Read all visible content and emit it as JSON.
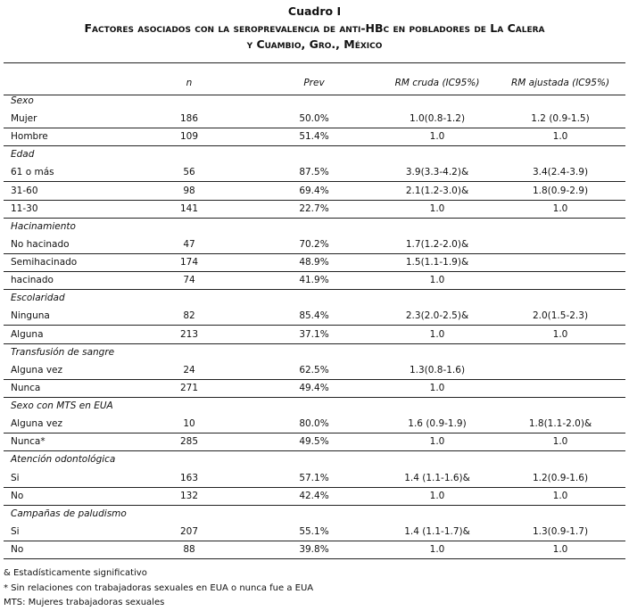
{
  "caption": "Cuadro I",
  "title_line1": "Factores asociados con la seroprevalencia de anti-HBc en pobladores de La Calera",
  "title_line2": "y Cuambio, Gro., México",
  "table": {
    "columns": [
      "n",
      "Prev",
      "RM cruda (IC95%)",
      "RM ajustada (IC95%)"
    ],
    "groups": [
      {
        "label": "Sexo",
        "rows": [
          [
            "Mujer",
            "186",
            "50.0%",
            "1.0(0.8-1.2)",
            "1.2 (0.9-1.5)"
          ],
          [
            "Hombre",
            "109",
            "51.4%",
            "1.0",
            "1.0"
          ]
        ]
      },
      {
        "label": "Edad",
        "rows": [
          [
            "61 o más",
            "56",
            "87.5%",
            "3.9(3.3-4.2)&",
            "3.4(2.4-3.9)"
          ],
          [
            "31-60",
            "98",
            "69.4%",
            "2.1(1.2-3.0)&",
            "1.8(0.9-2.9)"
          ],
          [
            "11-30",
            "141",
            "22.7%",
            "1.0",
            "1.0"
          ]
        ]
      },
      {
        "label": "Hacinamiento",
        "rows": [
          [
            "No hacinado",
            "47",
            "70.2%",
            "1.7(1.2-2.0)&",
            null
          ],
          [
            "Semihacinado",
            "174",
            "48.9%",
            "1.5(1.1-1.9)&",
            null
          ],
          [
            "hacinado",
            "74",
            "41.9%",
            "1.0",
            null
          ]
        ]
      },
      {
        "label": "Escolaridad",
        "rows": [
          [
            "Ninguna",
            "82",
            "85.4%",
            "2.3(2.0-2.5)&",
            "2.0(1.5-2.3)"
          ],
          [
            "Alguna",
            "213",
            "37.1%",
            "1.0",
            "1.0"
          ]
        ]
      },
      {
        "label": "Transfusión de sangre",
        "rows": [
          [
            "Alguna vez",
            "24",
            "62.5%",
            "1.3(0.8-1.6)",
            null
          ],
          [
            "Nunca",
            "271",
            "49.4%",
            "1.0",
            null
          ]
        ]
      },
      {
        "label": "Sexo con MTS en EUA",
        "rows": [
          [
            "Alguna vez",
            "10",
            "80.0%",
            "1.6 (0.9-1.9)",
            "1.8(1.1-2.0)&"
          ],
          [
            "Nunca*",
            "285",
            "49.5%",
            "1.0",
            "1.0"
          ]
        ]
      },
      {
        "label": "Atención odontológica",
        "rows": [
          [
            "Si",
            "163",
            "57.1%",
            "1.4 (1.1-1.6)&",
            "1.2(0.9-1.6)"
          ],
          [
            "No",
            "132",
            "42.4%",
            "1.0",
            "1.0"
          ]
        ]
      },
      {
        "label": "Campañas de paludismo",
        "rows": [
          [
            "Si",
            "207",
            "55.1%",
            "1.4 (1.1-1.7)&",
            "1.3(0.9-1.7)"
          ],
          [
            "No",
            "88",
            "39.8%",
            "1.0",
            "1.0"
          ]
        ]
      }
    ]
  },
  "footnotes": [
    "&   Estadísticamente significativo",
    "*   Sin relaciones con trabajadoras sexuales en EUA o nunca fue a EUA",
    "MTS: Mujeres trabajadoras sexuales"
  ]
}
